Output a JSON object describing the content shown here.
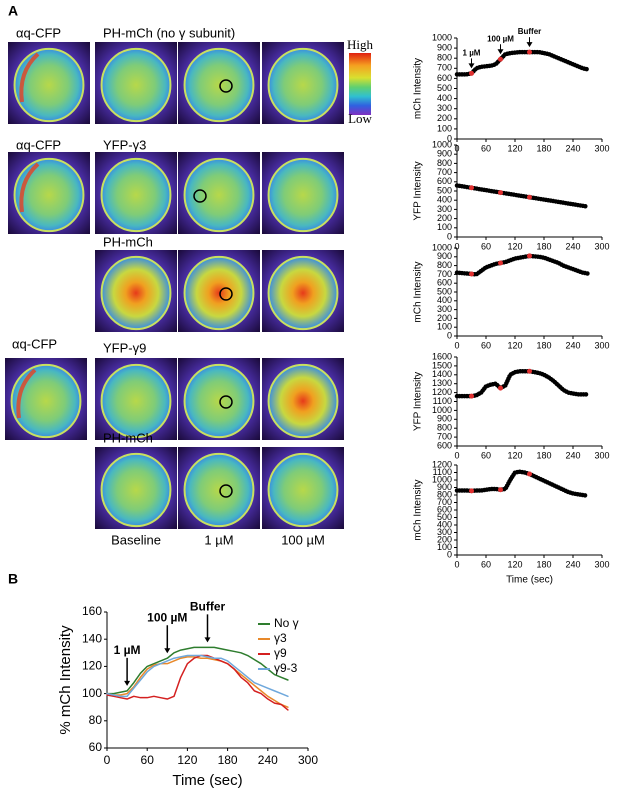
{
  "panels": {
    "panel_a": "A",
    "panel_b": "B",
    "row1": {
      "probe": "αq-CFP",
      "sensor": "PH-mCh (no γ subunit)"
    },
    "colorbar": {
      "high": "High",
      "low": "Low"
    },
    "row2": {
      "probe": "αq-CFP",
      "sensor": "YFP-γ3"
    },
    "row3": {
      "sensor": "PH-mCh"
    },
    "row4": {
      "probe": "αq-CFP",
      "sensor": "YFP-γ9"
    },
    "row5": {
      "sensor": "PH-mCh"
    },
    "columns": [
      "Baseline",
      "1 µM",
      "100 µM"
    ]
  },
  "chart_data": [
    {
      "type": "line",
      "ylabel": "mCh Intensity",
      "line_style": "dotted",
      "x": [
        0,
        10,
        20,
        30,
        40,
        50,
        60,
        70,
        80,
        90,
        100,
        110,
        120,
        130,
        140,
        150,
        160,
        170,
        180,
        190,
        200,
        210,
        220,
        230,
        240,
        250,
        260,
        270
      ],
      "xlim": [
        0,
        300
      ],
      "xticks": [
        0,
        60,
        120,
        180,
        240,
        300
      ],
      "ylim": [
        0,
        1000
      ],
      "yticks": [
        0,
        100,
        200,
        300,
        400,
        500,
        600,
        700,
        800,
        900,
        1000
      ],
      "series": [
        {
          "color": "#000000",
          "values": [
            640,
            640,
            640,
            650,
            700,
            715,
            720,
            725,
            740,
            790,
            840,
            850,
            855,
            860,
            860,
            860,
            860,
            860,
            850,
            840,
            820,
            800,
            780,
            760,
            740,
            720,
            700,
            690
          ]
        }
      ],
      "markers": {
        "color": "#e03030",
        "x": [
          30,
          90,
          150
        ],
        "values": [
          650,
          790,
          860
        ]
      },
      "annotations": [
        {
          "text": "1 µM",
          "x": 30
        },
        {
          "text": "100 µM",
          "x": 90
        },
        {
          "text": "Buffer",
          "x": 150
        }
      ]
    },
    {
      "type": "line",
      "ylabel": "YFP Intensity",
      "line_style": "dotted",
      "x": [
        0,
        10,
        20,
        30,
        40,
        50,
        60,
        70,
        80,
        90,
        100,
        110,
        120,
        130,
        140,
        150,
        160,
        170,
        180,
        190,
        200,
        210,
        220,
        230,
        240,
        250,
        260,
        270
      ],
      "xlim": [
        0,
        300
      ],
      "xticks": [
        0,
        60,
        120,
        180,
        240,
        300
      ],
      "ylim": [
        0,
        1000
      ],
      "yticks": [
        0,
        100,
        200,
        300,
        400,
        500,
        600,
        700,
        800,
        900,
        1000
      ],
      "series": [
        {
          "color": "#000000",
          "values": [
            560,
            552,
            543,
            535,
            526,
            517,
            509,
            500,
            492,
            483,
            475,
            466,
            458,
            449,
            441,
            432,
            424,
            415,
            407,
            398,
            390,
            381,
            373,
            364,
            356,
            347,
            339,
            330
          ]
        }
      ],
      "markers": {
        "color": "#e03030",
        "x": [
          30,
          90,
          150
        ],
        "values": [
          535,
          483,
          432
        ]
      }
    },
    {
      "type": "line",
      "ylabel": "mCh Intensity",
      "line_style": "dotted",
      "x": [
        0,
        10,
        20,
        30,
        40,
        50,
        60,
        70,
        80,
        90,
        100,
        110,
        120,
        130,
        140,
        150,
        160,
        170,
        180,
        190,
        200,
        210,
        220,
        230,
        240,
        250,
        260,
        270
      ],
      "xlim": [
        0,
        300
      ],
      "xticks": [
        0,
        60,
        120,
        180,
        240,
        300
      ],
      "ylim": [
        0,
        1000
      ],
      "yticks": [
        0,
        100,
        200,
        300,
        400,
        500,
        600,
        700,
        800,
        900,
        1000
      ],
      "series": [
        {
          "color": "#000000",
          "values": [
            720,
            715,
            710,
            705,
            700,
            740,
            780,
            800,
            820,
            830,
            840,
            860,
            880,
            890,
            900,
            910,
            905,
            900,
            890,
            870,
            850,
            830,
            800,
            780,
            760,
            740,
            720,
            710
          ]
        }
      ],
      "markers": {
        "color": "#e03030",
        "x": [
          30,
          90,
          150
        ],
        "values": [
          705,
          830,
          910
        ]
      }
    },
    {
      "type": "line",
      "ylabel": "YFP Intensity",
      "line_style": "dotted",
      "x": [
        0,
        10,
        20,
        30,
        40,
        50,
        60,
        70,
        80,
        90,
        100,
        110,
        120,
        130,
        140,
        150,
        160,
        170,
        180,
        190,
        200,
        210,
        220,
        230,
        240,
        250,
        260,
        270
      ],
      "xlim": [
        0,
        300
      ],
      "xticks": [
        0,
        60,
        120,
        180,
        240,
        300
      ],
      "ylim": [
        600,
        1600
      ],
      "yticks": [
        600,
        700,
        800,
        900,
        1000,
        1100,
        1200,
        1300,
        1400,
        1500,
        1600
      ],
      "series": [
        {
          "color": "#000000",
          "values": [
            1160,
            1160,
            1160,
            1160,
            1170,
            1200,
            1270,
            1290,
            1300,
            1250,
            1280,
            1400,
            1430,
            1440,
            1440,
            1440,
            1430,
            1420,
            1400,
            1370,
            1330,
            1280,
            1230,
            1200,
            1190,
            1180,
            1180,
            1180
          ]
        }
      ],
      "markers": {
        "color": "#e03030",
        "x": [
          30,
          90,
          150
        ],
        "values": [
          1160,
          1250,
          1440
        ]
      }
    },
    {
      "type": "line",
      "ylabel": "mCh Intensity",
      "xlabel": "Time (sec)",
      "line_style": "dotted",
      "x": [
        0,
        10,
        20,
        30,
        40,
        50,
        60,
        70,
        80,
        90,
        100,
        110,
        120,
        130,
        140,
        150,
        160,
        170,
        180,
        190,
        200,
        210,
        220,
        230,
        240,
        250,
        260,
        270
      ],
      "xlim": [
        0,
        300
      ],
      "xticks": [
        0,
        60,
        120,
        180,
        240,
        300
      ],
      "ylim": [
        0,
        1200
      ],
      "yticks": [
        0,
        100,
        200,
        300,
        400,
        500,
        600,
        700,
        800,
        900,
        1000,
        1100,
        1200
      ],
      "series": [
        {
          "color": "#000000",
          "values": [
            860,
            860,
            860,
            855,
            860,
            860,
            870,
            880,
            880,
            870,
            880,
            1000,
            1100,
            1110,
            1100,
            1080,
            1050,
            1020,
            990,
            960,
            930,
            900,
            870,
            840,
            820,
            810,
            800,
            790
          ]
        }
      ],
      "markers": {
        "color": "#e03030",
        "x": [
          30,
          90,
          150
        ],
        "values": [
          855,
          870,
          1080
        ]
      }
    },
    {
      "type": "line",
      "ylabel": "% mCh Intensity",
      "xlabel": "Time (sec)",
      "line_style": "solid",
      "legend": "upper right",
      "x": [
        0,
        10,
        20,
        30,
        40,
        50,
        60,
        70,
        80,
        90,
        100,
        110,
        120,
        130,
        140,
        150,
        160,
        170,
        180,
        190,
        200,
        210,
        220,
        230,
        240,
        250,
        260,
        270
      ],
      "xlim": [
        0,
        300
      ],
      "xticks": [
        0,
        60,
        120,
        180,
        240,
        300
      ],
      "ylim": [
        60,
        160
      ],
      "yticks": [
        60,
        80,
        100,
        120,
        140,
        160
      ],
      "series": [
        {
          "name": "No γ",
          "color": "#2e7d2e",
          "values": [
            100,
            100,
            101,
            102,
            108,
            115,
            120,
            122,
            124,
            126,
            130,
            132,
            133,
            134,
            134,
            134,
            134,
            133,
            132,
            131,
            130,
            128,
            125,
            122,
            118,
            114,
            112,
            110
          ]
        },
        {
          "name": "γ3",
          "color": "#e8892a",
          "values": [
            100,
            99,
            99,
            100,
            105,
            112,
            118,
            121,
            122,
            122,
            124,
            126,
            127,
            127,
            126,
            126,
            125,
            124,
            122,
            118,
            114,
            110,
            106,
            102,
            98,
            95,
            92,
            90
          ]
        },
        {
          "name": "γ9",
          "color": "#d42020",
          "values": [
            99,
            98,
            97,
            96,
            98,
            97,
            97,
            98,
            97,
            96,
            98,
            112,
            122,
            126,
            128,
            128,
            126,
            124,
            122,
            118,
            112,
            108,
            102,
            100,
            96,
            93,
            92,
            88
          ]
        },
        {
          "name": "γ9-3",
          "color": "#6fa8dc",
          "values": [
            100,
            99,
            98,
            98,
            104,
            110,
            116,
            120,
            122,
            124,
            126,
            127,
            128,
            128,
            128,
            127,
            126,
            126,
            124,
            120,
            116,
            112,
            108,
            106,
            104,
            102,
            100,
            98
          ]
        }
      ],
      "annotations": [
        {
          "text": "1 µM",
          "x": 30
        },
        {
          "text": "100 µM",
          "x": 90
        },
        {
          "text": "Buffer",
          "x": 150
        }
      ]
    }
  ]
}
